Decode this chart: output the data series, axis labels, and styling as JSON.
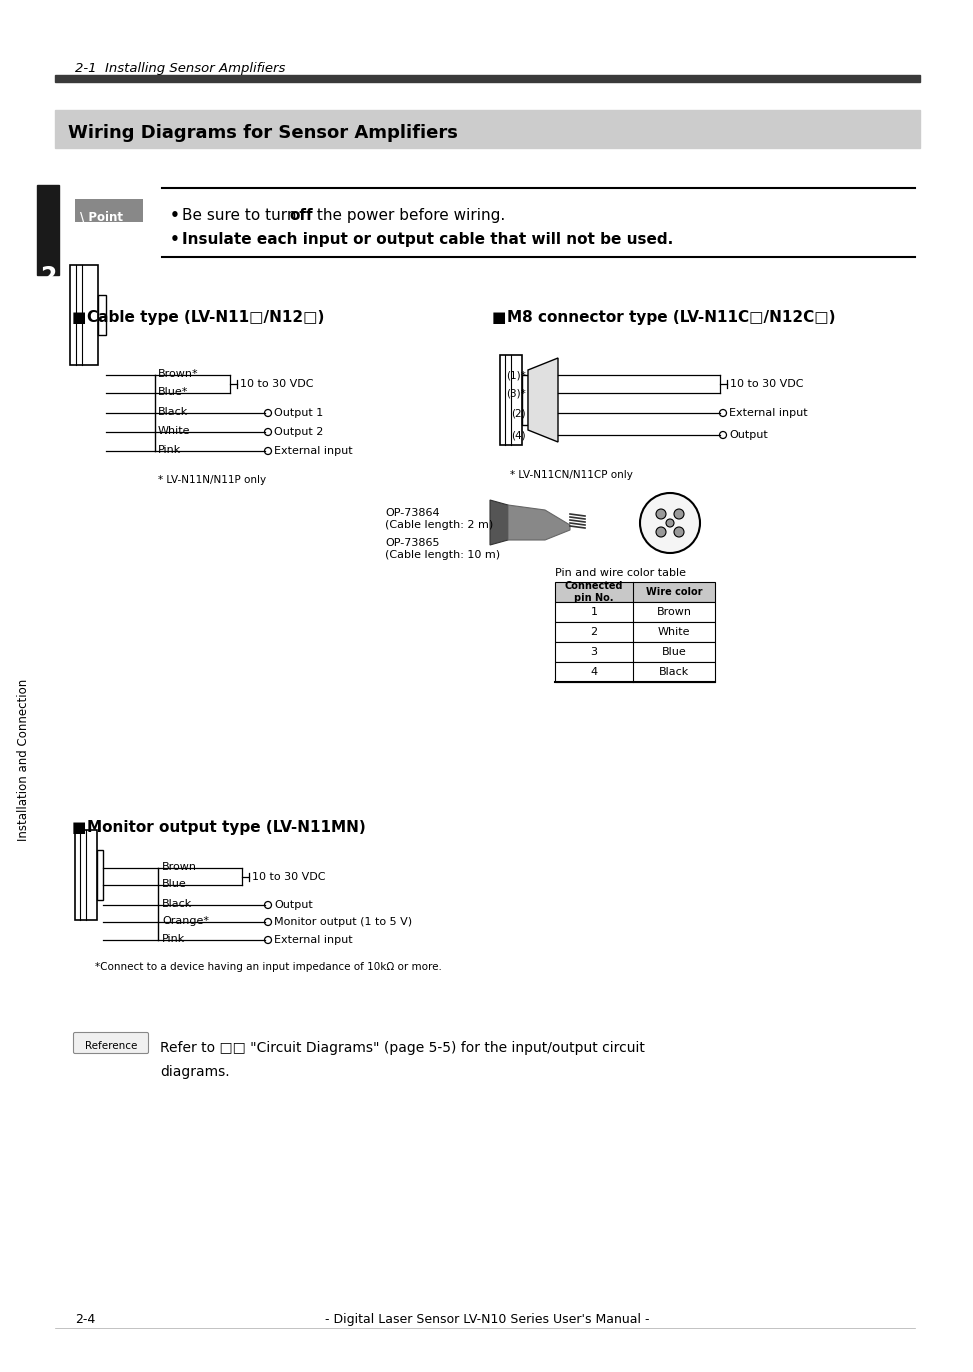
{
  "page_bg": "#ffffff",
  "header_text": "2-1  Installing Sensor Amplifiers",
  "header_bar_color": "#3a3a3a",
  "section_title": "Wiring Diagrams for Sensor Amplifiers",
  "section_title_bg": "#cccccc",
  "point_label": "\\ Point",
  "point_bullet1": "Be sure to turn off the power before wiring.",
  "point_bullet2": "Insulate each input or output cable that will not be used.",
  "chapter_num": "2",
  "chapter_label": "Installation and Connection",
  "cable_type_title": "Cable type (LV-N11□/N12□)",
  "cable_type_wires": [
    "Brown*",
    "Blue*",
    "Black",
    "White",
    "Pink"
  ],
  "cable_type_footnote": "* LV-N11N/N11P only",
  "m8_type_title": "M8 connector type (LV-N11C□/N12C□)",
  "m8_pins": [
    "(1)*",
    "(3)*",
    "(2)",
    "(4)"
  ],
  "m8_footnote": "* LV-N11CN/N11CP only",
  "op_label1": "OP-73864\n(Cable length: 2 m)",
  "op_label2": "OP-73865\n(Cable length: 10 m)",
  "pin_table_title": "Pin and wire color table",
  "pin_table_header1": "Connected\npin No.",
  "pin_table_header2": "Wire color",
  "pin_table_data": [
    [
      "1",
      "Brown"
    ],
    [
      "2",
      "White"
    ],
    [
      "3",
      "Blue"
    ],
    [
      "4",
      "Black"
    ]
  ],
  "monitor_title": "Monitor output type (LV-N11MN)",
  "monitor_wires": [
    "Brown",
    "Blue",
    "Black",
    "Orange*",
    "Pink"
  ],
  "monitor_footnote": "*Connect to a device having an input impedance of 10kΩ or more.",
  "reference_text1": "Refer to □□ \"Circuit Diagrams\" (page 5-5) for the input/output circuit",
  "reference_text2": "diagrams.",
  "footer_left": "2-4",
  "footer_center": "- Digital Laser Sensor LV-N10 Series User's Manual -"
}
